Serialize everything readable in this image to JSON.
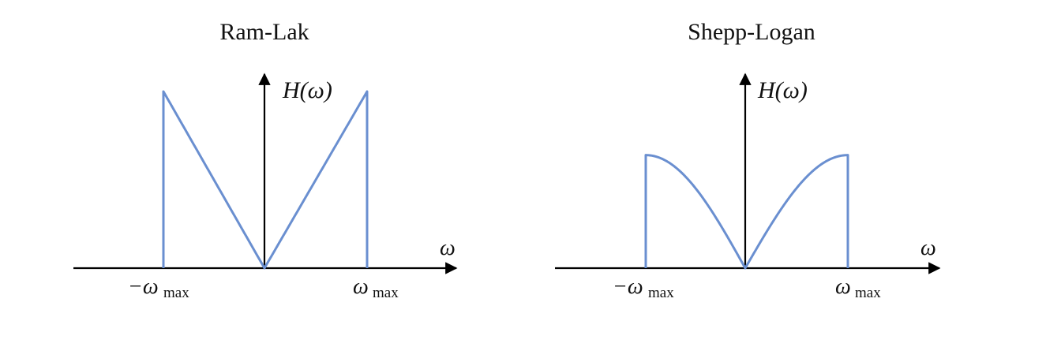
{
  "diagrams": [
    {
      "title": "Ram-Lak",
      "y_label": "H(ω)",
      "x_label": "ω",
      "tick_left": "−ω",
      "tick_right": "ω",
      "tick_sub": "max",
      "shape": "ramp",
      "curve_color": "#6a8fd0",
      "peak_level": 1.0
    },
    {
      "title": "Shepp-Logan",
      "y_label": "H(ω)",
      "x_label": "ω",
      "tick_left": "−ω",
      "tick_right": "ω",
      "tick_sub": "max",
      "shape": "sine-ramp",
      "curve_color": "#6a8fd0",
      "peak_level": 0.64
    }
  ]
}
